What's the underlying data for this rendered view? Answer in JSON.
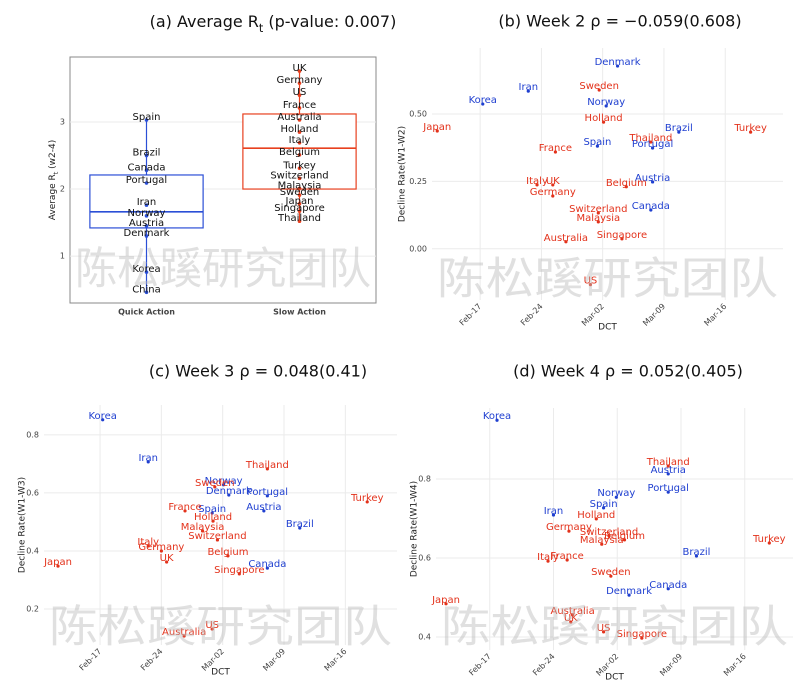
{
  "watermark": "陈松蹊研究团队",
  "chart_data": [
    {
      "type": "box",
      "title_parts": [
        "(a) Average R",
        "t",
        " (p-value: 0.007)"
      ],
      "ylabel_parts": [
        "Average R",
        "t",
        " (w2-4)"
      ],
      "ylim": [
        0.3,
        3.97
      ],
      "yticks": [
        1,
        2,
        3
      ],
      "grid": true,
      "groups": [
        {
          "name": "Quick Action",
          "color": "#2b4fd6",
          "whisker_low": 0.46,
          "q1": 1.42,
          "median": 1.66,
          "q3": 2.21,
          "whisker_high": 3.03,
          "points": [
            {
              "label": "Spain",
              "value": 3.03
            },
            {
              "label": "Brazil",
              "value": 2.5
            },
            {
              "label": "Canada",
              "value": 2.28
            },
            {
              "label": "Portugal",
              "value": 2.09
            },
            {
              "label": "Iran",
              "value": 1.76
            },
            {
              "label": "Norway",
              "value": 1.6
            },
            {
              "label": "Austria",
              "value": 1.45
            },
            {
              "label": "Denmark",
              "value": 1.3
            },
            {
              "label": "Korea",
              "value": 0.76
            },
            {
              "label": "China",
              "value": 0.46
            }
          ]
        },
        {
          "name": "Slow Action",
          "color": "#e8401f",
          "whisker_low": 1.52,
          "q1": 2.0,
          "median": 2.61,
          "q3": 3.12,
          "whisker_high": 3.76,
          "points": [
            {
              "label": "UK",
              "value": 3.76
            },
            {
              "label": "Germany",
              "value": 3.58
            },
            {
              "label": "US",
              "value": 3.4
            },
            {
              "label": "France",
              "value": 3.21
            },
            {
              "label": "Australia",
              "value": 3.03
            },
            {
              "label": "Holland",
              "value": 2.85
            },
            {
              "label": "Italy",
              "value": 2.69
            },
            {
              "label": "Belgium",
              "value": 2.51
            },
            {
              "label": "Turkey",
              "value": 2.31
            },
            {
              "label": "Switzerland",
              "value": 2.16
            },
            {
              "label": "Malaysia",
              "value": 2.01
            },
            {
              "label": "Sweden",
              "value": 1.91
            },
            {
              "label": "Japan",
              "value": 1.78
            },
            {
              "label": "Singapore",
              "value": 1.67
            },
            {
              "label": "Thailand",
              "value": 1.52
            }
          ]
        }
      ]
    },
    {
      "type": "scatter",
      "title": "(b) Week 2  ρ = −0.059(0.608)",
      "xlabel": "DCT",
      "ylabel": "Decline Rate(W1-W2)",
      "xlim": [
        42.5,
        82.6
      ],
      "ylim": [
        -0.19,
        0.745
      ],
      "xticks": [
        {
          "value": 48,
          "label": "Feb-17"
        },
        {
          "value": 55,
          "label": "Feb-24"
        },
        {
          "value": 62,
          "label": "Mar-02"
        },
        {
          "value": 69,
          "label": "Mar-09"
        },
        {
          "value": 76,
          "label": "Mar-16"
        }
      ],
      "yticks": [
        {
          "value": 0,
          "label": "0.00"
        },
        {
          "value": 0.25,
          "label": "0.25"
        },
        {
          "value": 0.5,
          "label": "0.50"
        }
      ],
      "grid": true,
      "series": [
        {
          "color": "#1f3fd0",
          "points": [
            {
              "label": "Denmark",
              "x": 63.7,
              "y": 0.678
            },
            {
              "label": "Korea",
              "x": 48.3,
              "y": 0.537
            },
            {
              "label": "Iran",
              "x": 53.5,
              "y": 0.585
            },
            {
              "label": "Norway",
              "x": 62.4,
              "y": 0.53
            },
            {
              "label": "Brazil",
              "x": 70.7,
              "y": 0.433
            },
            {
              "label": "Portugal",
              "x": 67.7,
              "y": 0.374
            },
            {
              "label": "Spain",
              "x": 61.4,
              "y": 0.381
            },
            {
              "label": "Austria",
              "x": 67.7,
              "y": 0.248
            },
            {
              "label": "Canada",
              "x": 67.5,
              "y": 0.144
            }
          ]
        },
        {
          "color": "#e3321b",
          "points": [
            {
              "label": "Sweden",
              "x": 61.6,
              "y": 0.589
            },
            {
              "label": "Japan",
              "x": 43.1,
              "y": 0.437
            },
            {
              "label": "Holland",
              "x": 62.1,
              "y": 0.47
            },
            {
              "label": "Turkey",
              "x": 78.9,
              "y": 0.433
            },
            {
              "label": "Thailand",
              "x": 67.5,
              "y": 0.396
            },
            {
              "label": "France",
              "x": 56.6,
              "y": 0.359
            },
            {
              "label": "Italy",
              "x": 54.5,
              "y": 0.237
            },
            {
              "label": "UK",
              "x": 56.3,
              "y": 0.237
            },
            {
              "label": "Belgium",
              "x": 64.7,
              "y": 0.23
            },
            {
              "label": "Germany",
              "x": 56.3,
              "y": 0.196
            },
            {
              "label": "Switzerland",
              "x": 61.5,
              "y": 0.133
            },
            {
              "label": "Malaysia",
              "x": 61.5,
              "y": 0.1
            },
            {
              "label": "Australia",
              "x": 57.8,
              "y": 0.026
            },
            {
              "label": "Singapore",
              "x": 64.2,
              "y": 0.037
            },
            {
              "label": "US",
              "x": 60.6,
              "y": -0.133
            }
          ]
        }
      ]
    },
    {
      "type": "scatter",
      "title": "(c) Week 3  ρ = 0.048(0.41)",
      "xlabel": "DCT",
      "ylabel": "Decline Rate(W1-W3)",
      "xlim": [
        41.6,
        81.9
      ],
      "ylim": [
        0.076,
        0.903
      ],
      "xticks": [
        {
          "value": 48,
          "label": "Feb-17"
        },
        {
          "value": 55,
          "label": "Feb-24"
        },
        {
          "value": 62,
          "label": "Mar-02"
        },
        {
          "value": 69,
          "label": "Mar-09"
        },
        {
          "value": 76,
          "label": "Mar-16"
        }
      ],
      "yticks": [
        0.2,
        0.4,
        0.6,
        0.8
      ],
      "grid": true,
      "series": [
        {
          "color": "#1f3fd0",
          "points": [
            {
              "label": "Korea",
              "x": 48.3,
              "y": 0.852
            },
            {
              "label": "Iran",
              "x": 53.5,
              "y": 0.707
            },
            {
              "label": "Norway",
              "x": 62.1,
              "y": 0.628
            },
            {
              "label": "Denmark",
              "x": 62.7,
              "y": 0.593
            },
            {
              "label": "Portugal",
              "x": 67.1,
              "y": 0.59
            },
            {
              "label": "Spain",
              "x": 60.8,
              "y": 0.531
            },
            {
              "label": "Austria",
              "x": 66.7,
              "y": 0.538
            },
            {
              "label": "Brazil",
              "x": 70.8,
              "y": 0.479
            },
            {
              "label": "Canada",
              "x": 67.1,
              "y": 0.341
            }
          ]
        },
        {
          "color": "#e3321b",
          "points": [
            {
              "label": "Thailand",
              "x": 67.1,
              "y": 0.683
            },
            {
              "label": "Sweden",
              "x": 61.1,
              "y": 0.621
            },
            {
              "label": "Turkey",
              "x": 78.5,
              "y": 0.569
            },
            {
              "label": "France",
              "x": 57.7,
              "y": 0.538
            },
            {
              "label": "Holland",
              "x": 60.9,
              "y": 0.503
            },
            {
              "label": "Malaysia",
              "x": 59.7,
              "y": 0.469
            },
            {
              "label": "Switzerland",
              "x": 61.4,
              "y": 0.438
            },
            {
              "label": "Italy",
              "x": 53.5,
              "y": 0.417
            },
            {
              "label": "Germany",
              "x": 55.0,
              "y": 0.4
            },
            {
              "label": "Belgium",
              "x": 62.6,
              "y": 0.383
            },
            {
              "label": "Japan",
              "x": 43.2,
              "y": 0.348
            },
            {
              "label": "UK",
              "x": 55.6,
              "y": 0.362
            },
            {
              "label": "Singapore",
              "x": 63.9,
              "y": 0.321
            },
            {
              "label": "US",
              "x": 60.8,
              "y": 0.131
            },
            {
              "label": "Australia",
              "x": 57.6,
              "y": 0.107
            }
          ]
        }
      ]
    },
    {
      "type": "scatter",
      "title": "(d) Week 4  ρ = 0.052(0.405)",
      "xlabel": "DCT",
      "ylabel": "Decline Rate(W1-W4)",
      "xlim": [
        42.1,
        81.3
      ],
      "ylim": [
        0.367,
        0.98
      ],
      "xticks": [
        {
          "value": 48,
          "label": "Feb-17"
        },
        {
          "value": 55,
          "label": "Feb-24"
        },
        {
          "value": 62,
          "label": "Mar-02"
        },
        {
          "value": 69,
          "label": "Mar-09"
        },
        {
          "value": 76,
          "label": "Mar-16"
        }
      ],
      "yticks": [
        0.4,
        0.6,
        0.8
      ],
      "grid": true,
      "series": [
        {
          "color": "#1f3fd0",
          "points": [
            {
              "label": "Korea",
              "x": 48.8,
              "y": 0.949
            },
            {
              "label": "Austria",
              "x": 67.6,
              "y": 0.813
            },
            {
              "label": "Portugal",
              "x": 67.6,
              "y": 0.767
            },
            {
              "label": "Norway",
              "x": 61.9,
              "y": 0.754
            },
            {
              "label": "Spain",
              "x": 60.5,
              "y": 0.727
            },
            {
              "label": "Iran",
              "x": 55.0,
              "y": 0.709
            },
            {
              "label": "Brazil",
              "x": 70.7,
              "y": 0.605
            },
            {
              "label": "Canada",
              "x": 67.6,
              "y": 0.522
            },
            {
              "label": "Denmark",
              "x": 63.3,
              "y": 0.506
            }
          ]
        },
        {
          "color": "#e3321b",
          "points": [
            {
              "label": "Thailand",
              "x": 67.6,
              "y": 0.833
            },
            {
              "label": "Holland",
              "x": 59.7,
              "y": 0.699
            },
            {
              "label": "Germany",
              "x": 56.7,
              "y": 0.668
            },
            {
              "label": "Switzerland",
              "x": 61.1,
              "y": 0.656
            },
            {
              "label": "Belgium",
              "x": 62.8,
              "y": 0.646
            },
            {
              "label": "Malaysia",
              "x": 60.3,
              "y": 0.635
            },
            {
              "label": "Turkey",
              "x": 78.7,
              "y": 0.638
            },
            {
              "label": "France",
              "x": 56.5,
              "y": 0.595
            },
            {
              "label": "Italy",
              "x": 54.4,
              "y": 0.592
            },
            {
              "label": "Sweden",
              "x": 61.3,
              "y": 0.554
            },
            {
              "label": "Japan",
              "x": 43.2,
              "y": 0.484
            },
            {
              "label": "Australia",
              "x": 57.1,
              "y": 0.456
            },
            {
              "label": "UK",
              "x": 56.9,
              "y": 0.438
            },
            {
              "label": "US",
              "x": 60.5,
              "y": 0.413
            },
            {
              "label": "Singapore",
              "x": 64.7,
              "y": 0.397
            }
          ]
        }
      ]
    }
  ]
}
